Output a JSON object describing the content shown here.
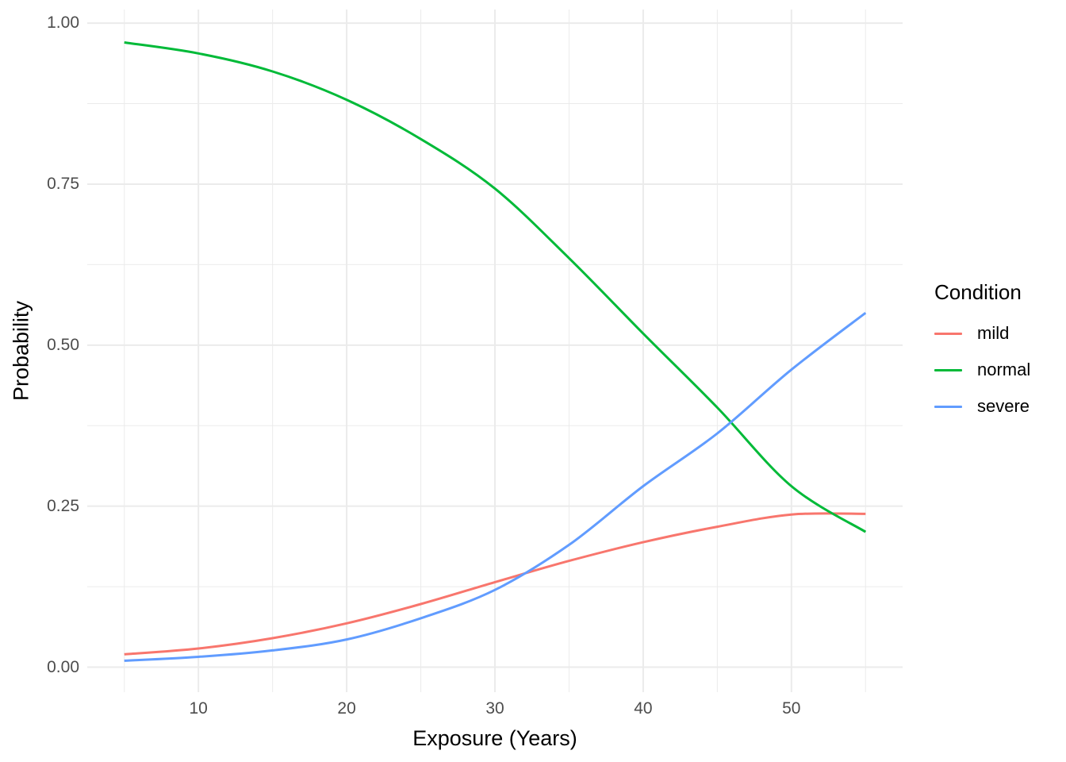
{
  "figure": {
    "background": "#FFFFFF"
  },
  "theme": {
    "grid_color": "#EBEBEB",
    "axis_text_color": "#4D4D4D",
    "axis_title_color": "#000000",
    "legend_text_color": "#000000"
  },
  "chart_data": {
    "type": "line",
    "title": "",
    "xlabel": "Exposure (Years)",
    "ylabel": "Probability",
    "xlim": [
      5,
      55
    ],
    "ylim": [
      0,
      1
    ],
    "grid": true,
    "legend_position": "right",
    "x": [
      5,
      10,
      15,
      20,
      25,
      30,
      35,
      40,
      45,
      50,
      55
    ],
    "series": [
      {
        "name": "mild",
        "color": "#F8766D",
        "values": [
          0.02,
          0.029,
          0.045,
          0.068,
          0.098,
          0.132,
          0.165,
          0.194,
          0.218,
          0.237,
          0.238
        ]
      },
      {
        "name": "normal",
        "color": "#00BA38",
        "values": [
          0.97,
          0.953,
          0.925,
          0.881,
          0.82,
          0.743,
          0.635,
          0.518,
          0.403,
          0.281,
          0.21
        ]
      },
      {
        "name": "severe",
        "color": "#619CFF",
        "values": [
          0.01,
          0.016,
          0.026,
          0.043,
          0.076,
          0.12,
          0.19,
          0.281,
          0.363,
          0.462,
          0.55
        ]
      }
    ],
    "x_ticks": [
      {
        "v": 10,
        "label": "10"
      },
      {
        "v": 20,
        "label": "20"
      },
      {
        "v": 30,
        "label": "30"
      },
      {
        "v": 40,
        "label": "40"
      },
      {
        "v": 50,
        "label": "50"
      }
    ],
    "y_ticks": [
      {
        "v": 0.0,
        "label": "0.00"
      },
      {
        "v": 0.25,
        "label": "0.25"
      },
      {
        "v": 0.5,
        "label": "0.50"
      },
      {
        "v": 0.75,
        "label": "0.75"
      },
      {
        "v": 1.0,
        "label": "1.00"
      }
    ],
    "x_minor": [
      5,
      15,
      25,
      35,
      45,
      55
    ],
    "y_minor": [
      0.125,
      0.375,
      0.625,
      0.875
    ],
    "legend": {
      "title": "Condition",
      "entries": [
        {
          "label": "mild",
          "color": "#F8766D"
        },
        {
          "label": "normal",
          "color": "#00BA38"
        },
        {
          "label": "severe",
          "color": "#619CFF"
        }
      ]
    }
  }
}
